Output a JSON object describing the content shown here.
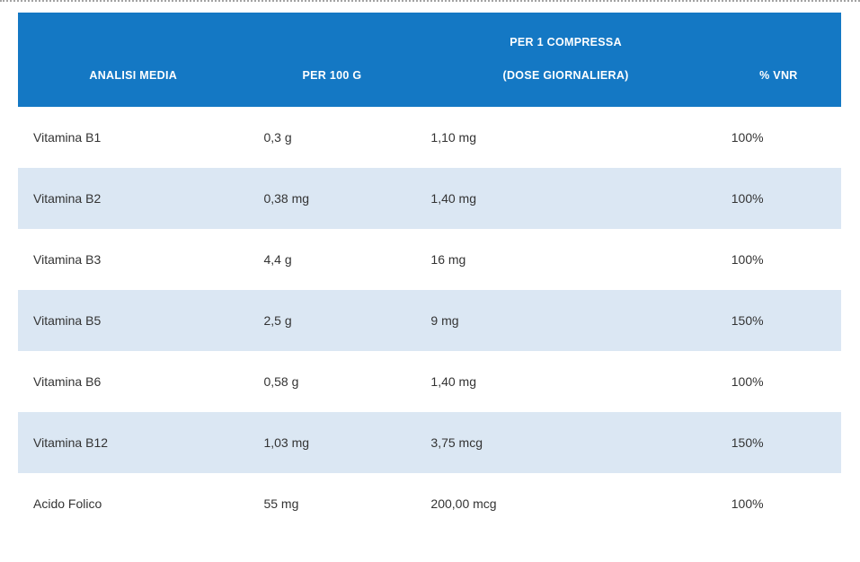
{
  "colors": {
    "header_bg": "#1478c4",
    "header_text": "#ffffff",
    "row_alt_bg": "#dbe7f3",
    "row_bg": "#ffffff",
    "body_text": "#333333",
    "dotted_line": "#a3a3a3"
  },
  "table": {
    "headers": [
      {
        "label": "ANALISI MEDIA"
      },
      {
        "label": "PER 100 G"
      },
      {
        "label": "PER 1 COMPRESSA",
        "sublabel": "(DOSE GIORNALIERA)"
      },
      {
        "label": "% VNR"
      }
    ],
    "rows": [
      {
        "name": "Vitamina B1",
        "per_100g": "0,3 g",
        "per_dose": "1,10 mg",
        "vnr": "100%"
      },
      {
        "name": "Vitamina B2",
        "per_100g": "0,38 mg",
        "per_dose": "1,40 mg",
        "vnr": "100%"
      },
      {
        "name": "Vitamina B3",
        "per_100g": "4,4 g",
        "per_dose": "16 mg",
        "vnr": "100%"
      },
      {
        "name": "Vitamina B5",
        "per_100g": "2,5 g",
        "per_dose": "9 mg",
        "vnr": "150%"
      },
      {
        "name": "Vitamina B6",
        "per_100g": "0,58 g",
        "per_dose": "1,40 mg",
        "vnr": "100%"
      },
      {
        "name": "Vitamina B12",
        "per_100g": "1,03 mg",
        "per_dose": "3,75 mcg",
        "vnr": "150%"
      },
      {
        "name": "Acido Folico",
        "per_100g": "55 mg",
        "per_dose": "200,00 mcg",
        "vnr": "100%"
      }
    ]
  }
}
